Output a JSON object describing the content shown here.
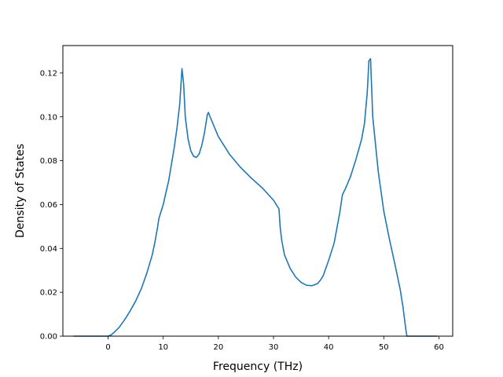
{
  "chart_data": {
    "type": "line",
    "title": "",
    "xlabel": "Frequency (THz)",
    "ylabel": "Density of States",
    "xlim": [
      -8.2,
      62.5
    ],
    "ylim": [
      0.0,
      0.1325
    ],
    "xticks": [
      0,
      10,
      20,
      30,
      40,
      50,
      60
    ],
    "xtick_labels": [
      "0",
      "10",
      "20",
      "30",
      "40",
      "50",
      "60"
    ],
    "yticks": [
      0.0,
      0.02,
      0.04,
      0.06,
      0.08,
      0.1,
      0.12
    ],
    "ytick_labels": [
      "0.00",
      "0.02",
      "0.04",
      "0.06",
      "0.08",
      "0.10",
      "0.12"
    ],
    "grid": false,
    "legend": "none",
    "colors": {
      "line": "#1f77b4",
      "axes": "#000000"
    },
    "series": [
      {
        "x": [
          -6.3,
          -4,
          -2,
          0,
          0.5,
          1,
          2,
          3,
          4,
          5,
          6,
          7,
          8,
          8.5,
          9,
          9.2,
          9.5,
          10,
          11,
          12,
          12.5,
          13,
          13.4,
          13.7,
          14,
          14.5,
          15,
          15.5,
          16,
          16.5,
          17,
          17.5,
          18,
          18.2,
          18.5,
          19,
          20,
          22,
          24,
          26,
          28,
          30,
          31,
          31.2,
          31.5,
          32,
          33,
          34,
          35,
          36,
          37,
          38,
          38.5,
          39,
          40,
          41,
          42,
          42.5,
          43,
          44,
          45,
          46,
          46.5,
          47,
          47.3,
          47.6,
          48,
          49,
          50,
          51,
          52,
          53,
          53.5,
          54,
          54.2,
          56,
          58,
          59.7
        ],
        "y": [
          0,
          0,
          0,
          0,
          0.0005,
          0.0015,
          0.004,
          0.0075,
          0.0115,
          0.016,
          0.0215,
          0.0285,
          0.037,
          0.043,
          0.05,
          0.0535,
          0.056,
          0.06,
          0.071,
          0.086,
          0.095,
          0.106,
          0.122,
          0.115,
          0.1,
          0.09,
          0.0845,
          0.082,
          0.0815,
          0.083,
          0.087,
          0.093,
          0.101,
          0.102,
          0.1,
          0.097,
          0.091,
          0.083,
          0.077,
          0.072,
          0.0675,
          0.062,
          0.058,
          0.05,
          0.0435,
          0.037,
          0.031,
          0.027,
          0.0245,
          0.0232,
          0.023,
          0.024,
          0.0255,
          0.0275,
          0.0345,
          0.0425,
          0.056,
          0.0645,
          0.067,
          0.073,
          0.081,
          0.09,
          0.097,
          0.111,
          0.1255,
          0.1265,
          0.1,
          0.075,
          0.057,
          0.0445,
          0.033,
          0.021,
          0.013,
          0.003,
          0,
          0,
          0,
          0
        ]
      }
    ]
  }
}
